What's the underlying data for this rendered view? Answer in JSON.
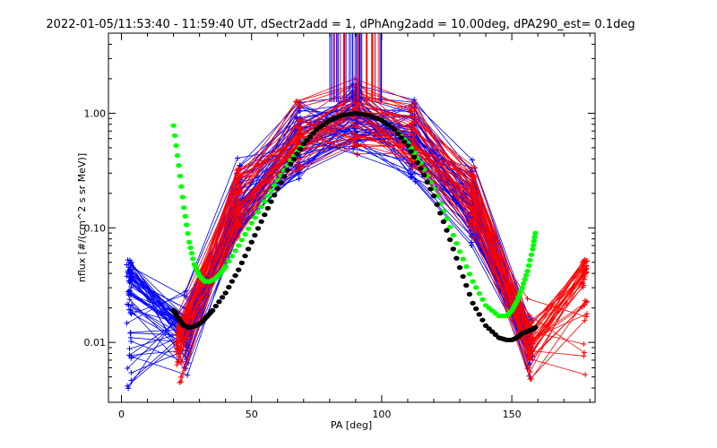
{
  "chart_data": {
    "type": "line",
    "title": "2022-01-05/11:53:40 - 11:59:40 UT, dSectr2add = 1, dPhAng2add = 10.00deg, dPA290_est=   0.1deg",
    "xlabel": "PA [deg]",
    "ylabel": "nflux [#/(cm^2 s sr MeV)]",
    "xlim": [
      -5,
      182
    ],
    "ylim": [
      0.003,
      5
    ],
    "yscale": "log",
    "xticks": [
      0,
      50,
      100,
      150
    ],
    "xtick_labels": [
      "0",
      "50",
      "100",
      "150"
    ],
    "yticks": [
      0.01,
      0.1,
      1.0
    ],
    "ytick_labels": [
      "0.01",
      "0.10",
      "1.00"
    ],
    "grid": false,
    "legend": "none",
    "colors": {
      "blue_traces": "#0000ff",
      "red_traces": "#ff0000",
      "green_fit": "#00ff00",
      "black_fit": "#000000"
    },
    "series": [
      {
        "color": "green",
        "style": "thick dotted",
        "x": [
          20,
          22,
          24,
          26,
          28,
          30,
          32,
          34,
          36,
          38,
          40,
          45,
          50,
          55,
          60,
          65,
          70,
          75,
          80,
          85,
          90,
          95,
          100,
          105,
          110,
          115,
          120,
          125,
          130,
          135,
          140,
          145,
          148,
          150,
          152,
          154,
          156,
          158,
          159
        ],
        "y": [
          0.78,
          0.35,
          0.15,
          0.075,
          0.048,
          0.038,
          0.034,
          0.034,
          0.036,
          0.04,
          0.046,
          0.07,
          0.11,
          0.17,
          0.26,
          0.39,
          0.55,
          0.72,
          0.87,
          0.96,
          1.0,
          0.96,
          0.87,
          0.72,
          0.55,
          0.37,
          0.22,
          0.12,
          0.062,
          0.034,
          0.021,
          0.017,
          0.017,
          0.019,
          0.023,
          0.03,
          0.042,
          0.065,
          0.09
        ]
      },
      {
        "color": "black",
        "style": "thick dotted",
        "x": [
          20,
          22,
          24,
          26,
          28,
          30,
          32,
          35,
          40,
          45,
          50,
          55,
          60,
          65,
          70,
          75,
          80,
          85,
          90,
          95,
          100,
          105,
          110,
          115,
          120,
          125,
          130,
          135,
          140,
          145,
          148,
          150,
          152,
          154,
          156,
          158,
          159
        ],
        "y": [
          0.019,
          0.016,
          0.014,
          0.0135,
          0.0138,
          0.0145,
          0.016,
          0.019,
          0.027,
          0.043,
          0.075,
          0.13,
          0.22,
          0.36,
          0.54,
          0.72,
          0.87,
          0.96,
          1.0,
          0.96,
          0.87,
          0.72,
          0.52,
          0.33,
          0.19,
          0.095,
          0.045,
          0.022,
          0.014,
          0.011,
          0.0105,
          0.0105,
          0.011,
          0.012,
          0.0125,
          0.013,
          0.0135
        ]
      }
    ]
  }
}
